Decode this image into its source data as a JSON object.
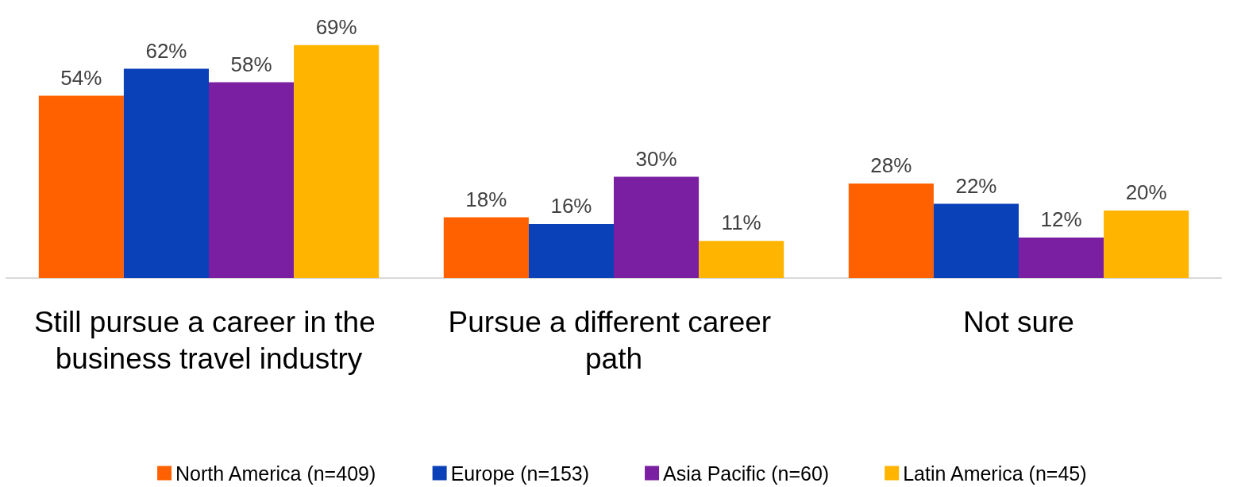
{
  "chart_data": {
    "type": "bar",
    "categories": [
      "Still pursue a career in the business travel industry",
      "Pursue a different career path",
      "Not sure"
    ],
    "series": [
      {
        "name": "North America (n=409)",
        "color": "#ff6100",
        "values": [
          54,
          18,
          28
        ],
        "value_labels": [
          "54%",
          "18%",
          "28%"
        ]
      },
      {
        "name": "Europe (n=153)",
        "color": "#0b41b8",
        "values": [
          62,
          16,
          22
        ],
        "value_labels": [
          "62%",
          "16%",
          "22%"
        ]
      },
      {
        "name": "Asia Pacific (n=60)",
        "color": "#7b1fa2",
        "values": [
          58,
          30,
          12
        ],
        "value_labels": [
          "58%",
          "30%",
          "12%"
        ]
      },
      {
        "name": "Latin America (n=45)",
        "color": "#ffb400",
        "values": [
          69,
          11,
          20
        ],
        "value_labels": [
          "69%",
          "11%",
          "20%"
        ]
      }
    ],
    "legend": "bottom"
  }
}
